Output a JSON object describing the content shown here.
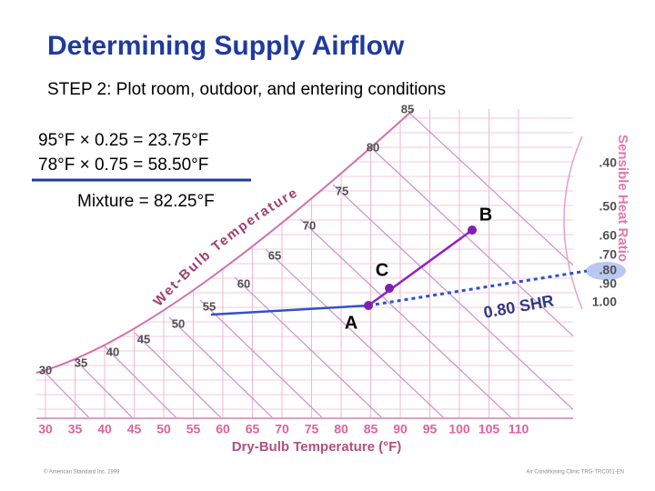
{
  "header": {
    "title": "Determining Supply Airflow",
    "subtitle": "STEP 2:  Plot room, outdoor, and entering conditions"
  },
  "calculation": {
    "lines": [
      "95°F × 0.25 = 23.75°F",
      "78°F × 0.75 = 58.50°F"
    ],
    "result": "Mixture = 82.25°F"
  },
  "chart": {
    "dry_bulb_labels": [
      "30",
      "35",
      "40",
      "45",
      "50",
      "55",
      "60",
      "65",
      "70",
      "75",
      "80",
      "85",
      "90",
      "95",
      "100",
      "105",
      "110"
    ],
    "dry_bulb_title": "Dry-Bulb Temperature (°F)",
    "wet_bulb_labels": [
      "85",
      "80",
      "75",
      "70",
      "65",
      "60",
      "55",
      "50",
      "45",
      "40",
      "35",
      "30"
    ],
    "wet_bulb_title": "Wet-Bulb Temperature (°F)",
    "shr_labels": [
      ".40",
      ".50",
      ".60",
      ".70",
      ".80",
      ".90",
      "1.00"
    ],
    "shr_title": "Sensible Heat Ratio",
    "points": [
      "A",
      "B",
      "C"
    ],
    "annotation": "0.80 SHR"
  },
  "footer": {
    "left": "© American Standard Inc. 1999",
    "right": "Air Conditioning Clinic TRG-TRC001-EN"
  }
}
